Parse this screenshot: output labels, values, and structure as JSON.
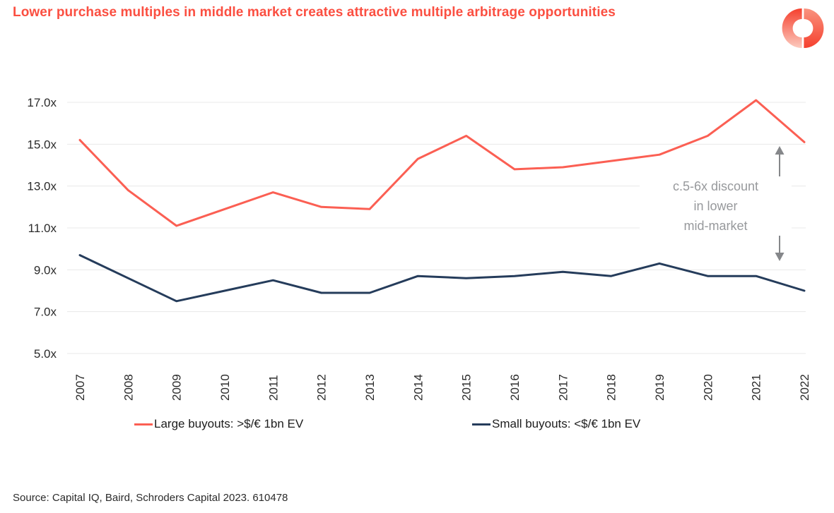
{
  "header": {
    "title": "Lower purchase multiples in middle market creates attractive multiple arbitrage opportunities"
  },
  "icons": {
    "logo": "split-donut-ring"
  },
  "colors": {
    "title": "#fb4f41",
    "large_buyouts_line": "#fb5f53",
    "small_buyouts_line": "#253c5b",
    "grid": "#e8e8e8",
    "axis_text": "#2b2b2b",
    "legend_text": "#1d1d1d",
    "annotation_text": "#97999c",
    "arrow": "#85878a",
    "logo_coral": "#f5402e"
  },
  "chart_data": {
    "type": "line",
    "title": "",
    "xlabel": "",
    "ylabel": "",
    "categories": [
      "2007",
      "2008",
      "2009",
      "2010",
      "2011",
      "2012",
      "2013",
      "2014",
      "2015",
      "2016",
      "2017",
      "2018",
      "2019",
      "2020",
      "2021",
      "2022"
    ],
    "series": [
      {
        "name": "Large buyouts: >$/€ 1bn EV",
        "color": "#fb5f53",
        "values": [
          15.2,
          12.8,
          11.1,
          11.9,
          12.7,
          12.0,
          11.9,
          14.3,
          15.4,
          13.8,
          13.9,
          14.2,
          14.5,
          15.4,
          17.1,
          15.1
        ]
      },
      {
        "name": "Small buyouts: <$/€ 1bn EV",
        "color": "#253c5b",
        "values": [
          9.7,
          8.6,
          7.5,
          8.0,
          8.5,
          7.9,
          7.9,
          8.7,
          8.6,
          8.7,
          8.9,
          8.7,
          9.3,
          8.7,
          8.7,
          8.0
        ]
      }
    ],
    "ytick_labels": [
      "17.0x",
      "15.0x",
      "13.0x",
      "11.0x",
      "9.0x",
      "7.0x",
      "5.0x"
    ],
    "ylim": [
      5,
      17
    ],
    "grid": "horizontal",
    "xtick_rotation": -90,
    "legend_position": "bottom",
    "annotation": {
      "lines": [
        "c.5-6x discount",
        "in lower",
        "mid-market"
      ],
      "arrow": "vertical-double-headed"
    }
  },
  "footer": {
    "source": "Source: Capital IQ, Baird, Schroders Capital 2023. 610478"
  }
}
